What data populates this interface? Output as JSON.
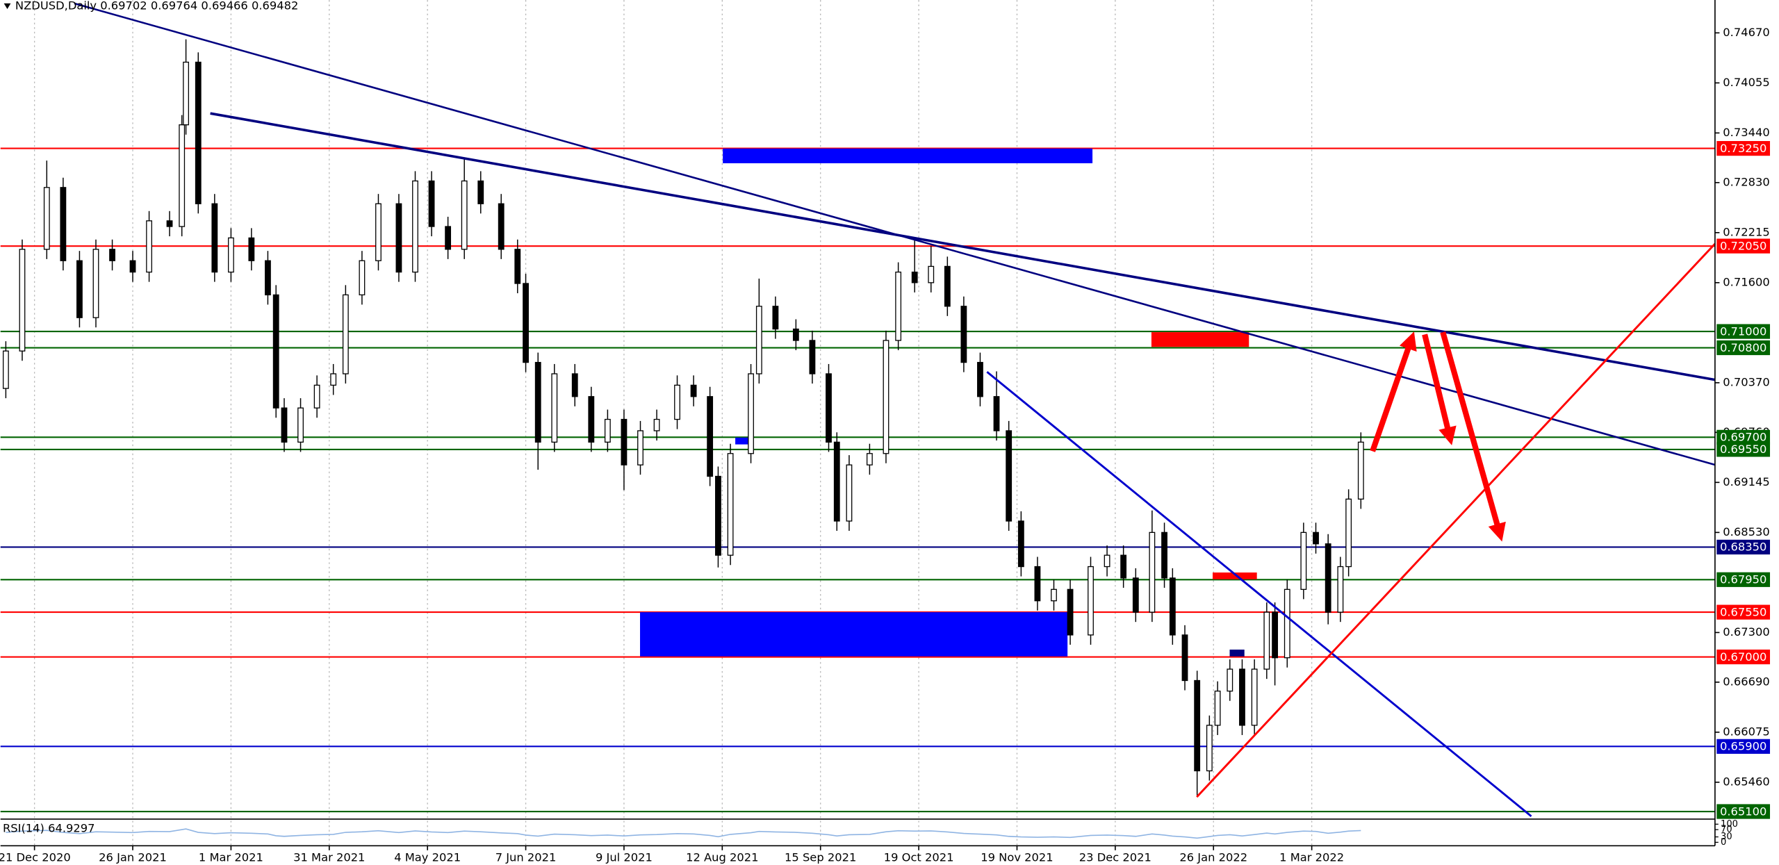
{
  "chart_data": {
    "type": "candlestick",
    "title": "NZDUSD,Daily  0.69702 0.69764 0.69466 0.69482",
    "x": [
      -7,
      -3,
      3,
      7,
      11,
      15,
      19,
      24,
      28,
      33,
      36,
      37,
      40,
      44,
      48,
      53,
      57,
      59,
      61,
      65,
      69,
      73,
      76,
      80,
      84,
      89,
      93,
      97,
      101,
      105,
      109,
      114,
      118,
      120,
      123,
      127,
      132,
      136,
      140,
      144,
      148,
      152,
      157,
      161,
      165,
      167,
      170,
      175,
      177,
      181,
      186,
      190,
      194,
      196,
      199,
      204,
      208,
      211,
      215,
      219,
      223,
      227,
      231,
      235,
      238,
      241,
      245,
      249,
      253,
      258,
      262,
      266,
      269,
      273,
      276,
      278,
      281,
      284,
      287,
      289,
      292,
      295,
      298,
      301,
      303,
      306,
      310,
      313,
      316,
      319,
      321,
      324
    ],
    "open": [
      0.703,
      0.7076,
      0.7201,
      0.7277,
      0.7187,
      0.7117,
      0.7201,
      0.7187,
      0.7173,
      0.7236,
      0.7229,
      0.7354,
      0.7431,
      0.7257,
      0.7173,
      0.7215,
      0.7187,
      0.7145,
      0.7006,
      0.6964,
      0.7006,
      0.7034,
      0.7048,
      0.7145,
      0.7187,
      0.7257,
      0.7173,
      0.7285,
      0.7229,
      0.7201,
      0.7285,
      0.7257,
      0.7201,
      0.7159,
      0.7062,
      0.6964,
      0.7048,
      0.702,
      0.6964,
      0.6992,
      0.6936,
      0.6978,
      0.6992,
      0.7034,
      0.702,
      0.6922,
      0.6825,
      0.695,
      0.7048,
      0.7131,
      0.7103,
      0.7089,
      0.7048,
      0.6964,
      0.6867,
      0.6936,
      0.695,
      0.7089,
      0.7173,
      0.716,
      0.718,
      0.7131,
      0.7062,
      0.702,
      0.6978,
      0.6867,
      0.6811,
      0.6769,
      0.6783,
      0.6727,
      0.6811,
      0.6825,
      0.6797,
      0.6755,
      0.6853,
      0.6797,
      0.6727,
      0.6671,
      0.656,
      0.6616,
      0.6658,
      0.6685,
      0.6616,
      0.6685,
      0.6755,
      0.6699,
      0.6783,
      0.6853,
      0.6839,
      0.6755,
      0.6811,
      0.6894
    ],
    "high": [
      0.7088,
      0.7213,
      0.731,
      0.7289,
      0.7199,
      0.7213,
      0.7213,
      0.7199,
      0.7248,
      0.7248,
      0.7366,
      0.7459,
      0.7443,
      0.7269,
      0.7227,
      0.7227,
      0.7199,
      0.7157,
      0.7018,
      0.7018,
      0.7046,
      0.706,
      0.7157,
      0.7199,
      0.7269,
      0.7269,
      0.7297,
      0.7297,
      0.7241,
      0.7314,
      0.7297,
      0.7269,
      0.7213,
      0.7171,
      0.7074,
      0.706,
      0.706,
      0.7032,
      0.7004,
      0.7004,
      0.699,
      0.7004,
      0.7046,
      0.7046,
      0.7032,
      0.6934,
      0.6962,
      0.706,
      0.7165,
      0.7143,
      0.7115,
      0.7101,
      0.706,
      0.6976,
      0.6948,
      0.6962,
      0.7101,
      0.7185,
      0.7215,
      0.7205,
      0.7192,
      0.7143,
      0.7074,
      0.7051,
      0.699,
      0.6879,
      0.6823,
      0.6795,
      0.6795,
      0.6823,
      0.6837,
      0.6837,
      0.6809,
      0.688,
      0.6865,
      0.6809,
      0.6739,
      0.6683,
      0.6628,
      0.667,
      0.6697,
      0.6697,
      0.6697,
      0.6767,
      0.6767,
      0.6795,
      0.6865,
      0.6865,
      0.6851,
      0.6823,
      0.6906,
      0.6976
    ],
    "low": [
      0.7018,
      0.7064,
      0.7189,
      0.7175,
      0.7105,
      0.7105,
      0.7175,
      0.7161,
      0.7161,
      0.7217,
      0.7217,
      0.7342,
      0.7245,
      0.7161,
      0.7161,
      0.7175,
      0.7133,
      0.6994,
      0.6952,
      0.6952,
      0.6994,
      0.7022,
      0.7036,
      0.7133,
      0.7175,
      0.7161,
      0.7161,
      0.7217,
      0.7189,
      0.7189,
      0.7245,
      0.7189,
      0.7147,
      0.705,
      0.693,
      0.6952,
      0.7008,
      0.6952,
      0.6952,
      0.6905,
      0.6924,
      0.6966,
      0.698,
      0.7008,
      0.691,
      0.681,
      0.6813,
      0.6938,
      0.7036,
      0.7091,
      0.7077,
      0.7036,
      0.6952,
      0.6855,
      0.6855,
      0.6924,
      0.6938,
      0.7077,
      0.7148,
      0.7148,
      0.7119,
      0.705,
      0.7008,
      0.6966,
      0.6855,
      0.6799,
      0.6757,
      0.6757,
      0.6715,
      0.6715,
      0.6799,
      0.6785,
      0.6743,
      0.6743,
      0.6785,
      0.6715,
      0.6659,
      0.653,
      0.6548,
      0.6604,
      0.6646,
      0.6604,
      0.6604,
      0.6673,
      0.6665,
      0.6687,
      0.6771,
      0.6827,
      0.674,
      0.6743,
      0.6799,
      0.6882
    ],
    "close": [
      0.7076,
      0.7201,
      0.7277,
      0.7187,
      0.7117,
      0.7201,
      0.7187,
      0.7173,
      0.7236,
      0.7229,
      0.7354,
      0.7431,
      0.7257,
      0.7173,
      0.7215,
      0.7187,
      0.7145,
      0.7006,
      0.6964,
      0.7006,
      0.7034,
      0.7048,
      0.7145,
      0.7187,
      0.7257,
      0.7173,
      0.7285,
      0.7229,
      0.7201,
      0.7285,
      0.7257,
      0.7201,
      0.7159,
      0.7062,
      0.6964,
      0.7048,
      0.702,
      0.6964,
      0.6992,
      0.6936,
      0.6978,
      0.6992,
      0.7034,
      0.702,
      0.6922,
      0.6825,
      0.695,
      0.7048,
      0.7131,
      0.7103,
      0.7089,
      0.7048,
      0.6964,
      0.6867,
      0.6936,
      0.695,
      0.7089,
      0.7173,
      0.716,
      0.718,
      0.7131,
      0.7062,
      0.702,
      0.6978,
      0.6867,
      0.6811,
      0.6769,
      0.6783,
      0.6727,
      0.6811,
      0.6825,
      0.6797,
      0.6755,
      0.6853,
      0.6797,
      0.6727,
      0.6671,
      0.656,
      0.6616,
      0.6658,
      0.6685,
      0.6616,
      0.6685,
      0.6755,
      0.6699,
      0.6783,
      0.6853,
      0.6839,
      0.6755,
      0.6811,
      0.6894,
      0.6964
    ],
    "bull_color": "#ffffff",
    "bear_color": "#000000",
    "xlim": [
      -8.3,
      410.5
    ],
    "xticks": [
      {
        "value": 0,
        "label": "21 Dec 2020"
      },
      {
        "value": 24,
        "label": "26 Jan 2021"
      },
      {
        "value": 48,
        "label": "1 Mar 2021"
      },
      {
        "value": 72,
        "label": "31 Mar 2021"
      },
      {
        "value": 96,
        "label": "4 May 2021"
      },
      {
        "value": 120,
        "label": "7 Jun 2021"
      },
      {
        "value": 144,
        "label": "9 Jul 2021"
      },
      {
        "value": 168,
        "label": "12 Aug 2021"
      },
      {
        "value": 192,
        "label": "15 Sep 2021"
      },
      {
        "value": 216,
        "label": "19 Oct 2021"
      },
      {
        "value": 240,
        "label": "19 Nov 2021"
      },
      {
        "value": 264,
        "label": "23 Dec 2021"
      },
      {
        "value": 288,
        "label": "26 Jan 2022"
      },
      {
        "value": 312,
        "label": "1 Mar 2022"
      }
    ],
    "ylim": [
      0.65014,
      0.75074
    ],
    "yticks": [
      {
        "value": 0.7467,
        "label": "0.74670"
      },
      {
        "value": 0.74055,
        "label": "0.74055"
      },
      {
        "value": 0.7344,
        "label": "0.73440"
      },
      {
        "value": 0.7283,
        "label": "0.72830"
      },
      {
        "value": 0.72215,
        "label": "0.72215"
      },
      {
        "value": 0.716,
        "label": "0.71600"
      },
      {
        "value": 0.7037,
        "label": "0.70370"
      },
      {
        "value": 0.6976,
        "label": "0.69760"
      },
      {
        "value": 0.69145,
        "label": "0.69145"
      },
      {
        "value": 0.6853,
        "label": "0.68530"
      },
      {
        "value": 0.673,
        "label": "0.67300"
      },
      {
        "value": 0.6669,
        "label": "0.66690"
      },
      {
        "value": 0.66075,
        "label": "0.66075"
      },
      {
        "value": 0.6546,
        "label": "0.65460"
      }
    ],
    "grid": true,
    "levels": [
      {
        "value": 0.7325,
        "label": "0.73250",
        "color": "#ff0000"
      },
      {
        "value": 0.7205,
        "label": "0.72050",
        "color": "#ff0000"
      },
      {
        "value": 0.71,
        "label": "0.71000",
        "color": "#006400"
      },
      {
        "value": 0.708,
        "label": "0.70800",
        "color": "#006400"
      },
      {
        "value": 0.697,
        "label": "0.69700",
        "color": "#006400"
      },
      {
        "value": 0.6955,
        "label": "0.69550",
        "color": "#006400"
      },
      {
        "value": 0.6835,
        "label": "0.68350",
        "color": "#000080"
      },
      {
        "value": 0.6795,
        "label": "0.67950",
        "color": "#006400"
      },
      {
        "value": 0.6755,
        "label": "0.67550",
        "color": "#ff0000"
      },
      {
        "value": 0.67,
        "label": "0.67000",
        "color": "#ff0000"
      },
      {
        "value": 0.659,
        "label": "0.65900",
        "color": "#0000cd"
      },
      {
        "value": 0.651,
        "label": "0.65100",
        "color": "#006400"
      }
    ],
    "rsi": {
      "label": "RSI(14) 64.9297",
      "color": "#8fb4e3",
      "ylim": [
        0,
        100
      ],
      "yticks": [
        100,
        70,
        30,
        0
      ],
      "values": [
        55,
        62,
        66,
        55,
        48,
        58,
        56,
        54,
        60,
        59,
        70,
        74,
        55,
        48,
        53,
        50,
        46,
        36,
        33,
        38,
        42,
        44,
        55,
        58,
        64,
        54,
        63,
        57,
        54,
        62,
        58,
        52,
        48,
        40,
        34,
        45,
        42,
        37,
        40,
        35,
        41,
        43,
        48,
        46,
        38,
        31,
        44,
        53,
        60,
        57,
        55,
        50,
        42,
        35,
        42,
        44,
        58,
        64,
        62,
        63,
        57,
        49,
        45,
        41,
        33,
        30,
        28,
        30,
        27,
        38,
        40,
        37,
        33,
        46,
        40,
        34,
        30,
        23,
        32,
        38,
        42,
        35,
        43,
        51,
        46,
        55,
        62,
        60,
        50,
        56,
        62,
        65
      ]
    }
  }
}
